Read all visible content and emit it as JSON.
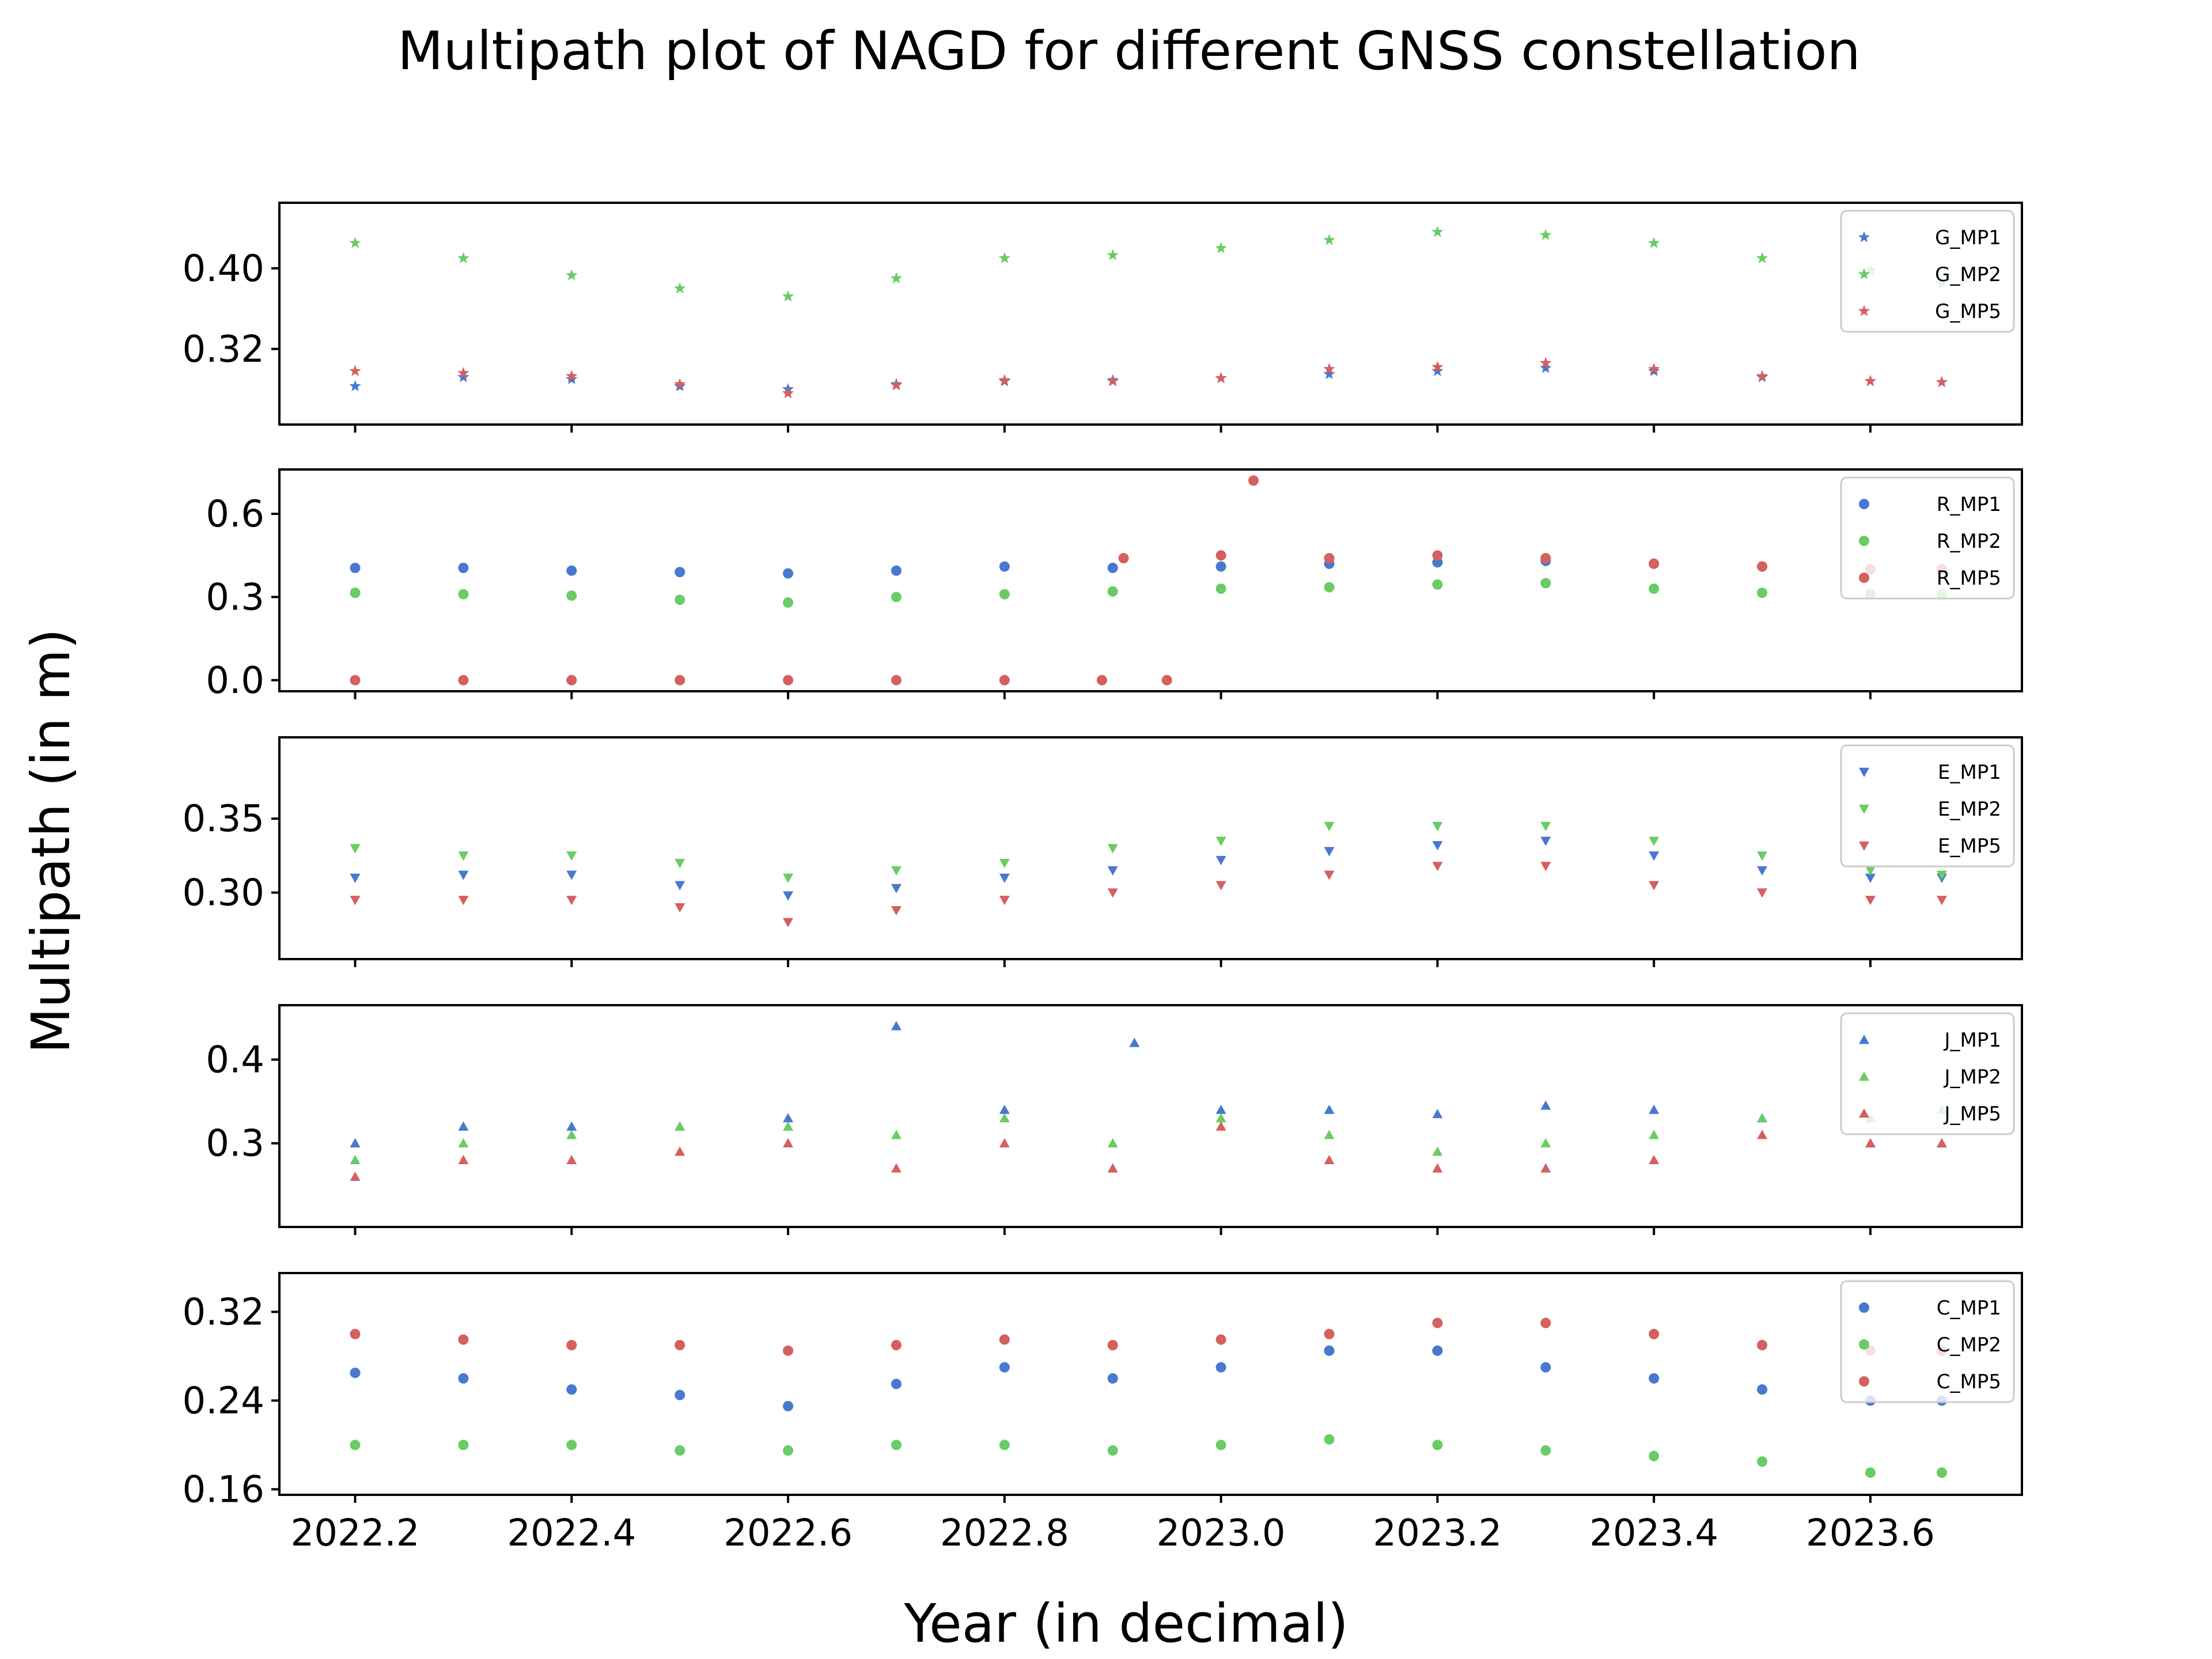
{
  "colors": {
    "MP1": "#4878d0",
    "MP2": "#6acc64",
    "MP5": "#d65f5f"
  },
  "chart_data": {
    "type": "scatter",
    "title": "Multipath plot of NAGD for different GNSS constellation",
    "xlabel": "Year (in decimal)",
    "ylabel": "Multipath (in m)",
    "xlim": [
      2022.13,
      2023.74
    ],
    "x_range": [
      2022.2,
      2023.666
    ],
    "x_ticks": [
      2022.2,
      2022.4,
      2022.6,
      2022.8,
      2023.0,
      2023.2,
      2023.4,
      2023.6
    ],
    "x_tick_labels": [
      "2022.2",
      "2022.4",
      "2022.6",
      "2022.8",
      "2023.0",
      "2023.2",
      "2023.4",
      "2023.6"
    ],
    "grid": false,
    "legend_position": "upper right",
    "panels": [
      {
        "constellation": "G",
        "marker": "star",
        "ylim": [
          0.245,
          0.465
        ],
        "y_ticks": [
          0.32,
          0.4
        ],
        "y_tick_labels": [
          "0.32",
          "0.40"
        ],
        "series": [
          {
            "name": "G_MP1",
            "color_key": "MP1",
            "x": [
              2022.2,
              2022.3,
              2022.4,
              2022.5,
              2022.6,
              2022.7,
              2022.8,
              2022.9,
              2023.0,
              2023.1,
              2023.2,
              2023.3,
              2023.4,
              2023.5,
              2023.6,
              2023.666
            ],
            "y": [
              0.283,
              0.292,
              0.29,
              0.283,
              0.28,
              0.285,
              0.288,
              0.289,
              0.291,
              0.295,
              0.298,
              0.301,
              0.298,
              0.292,
              0.288,
              0.287
            ]
          },
          {
            "name": "G_MP2",
            "color_key": "MP2",
            "x": [
              2022.2,
              2022.3,
              2022.4,
              2022.5,
              2022.6,
              2022.7,
              2022.8,
              2022.9,
              2023.0,
              2023.1,
              2023.2,
              2023.3,
              2023.4,
              2023.5,
              2023.6,
              2023.666
            ],
            "y": [
              0.425,
              0.41,
              0.393,
              0.38,
              0.372,
              0.39,
              0.41,
              0.413,
              0.42,
              0.428,
              0.436,
              0.433,
              0.425,
              0.41,
              0.398,
              0.385
            ]
          },
          {
            "name": "G_MP5",
            "color_key": "MP5",
            "x": [
              2022.2,
              2022.3,
              2022.4,
              2022.5,
              2022.6,
              2022.7,
              2022.8,
              2022.9,
              2023.0,
              2023.1,
              2023.2,
              2023.3,
              2023.4,
              2023.5,
              2023.6,
              2023.666
            ],
            "y": [
              0.298,
              0.296,
              0.293,
              0.285,
              0.276,
              0.284,
              0.289,
              0.288,
              0.291,
              0.3,
              0.302,
              0.306,
              0.3,
              0.293,
              0.288,
              0.287
            ]
          }
        ]
      },
      {
        "constellation": "R",
        "marker": "circle",
        "ylim": [
          -0.04,
          0.76
        ],
        "y_ticks": [
          0.0,
          0.3,
          0.6
        ],
        "y_tick_labels": [
          "0.0",
          "0.3",
          "0.6"
        ],
        "series": [
          {
            "name": "R_MP1",
            "color_key": "MP1",
            "x": [
              2022.2,
              2022.3,
              2022.4,
              2022.5,
              2022.6,
              2022.7,
              2022.8,
              2022.9,
              2023.0,
              2023.1,
              2023.2,
              2023.3,
              2023.4,
              2023.5,
              2023.6,
              2023.666
            ],
            "y": [
              0.405,
              0.405,
              0.395,
              0.39,
              0.385,
              0.395,
              0.41,
              0.405,
              0.41,
              0.42,
              0.425,
              0.43,
              0.42,
              0.41,
              0.4,
              0.4
            ]
          },
          {
            "name": "R_MP2",
            "color_key": "MP2",
            "x": [
              2022.2,
              2022.3,
              2022.4,
              2022.5,
              2022.6,
              2022.7,
              2022.8,
              2022.9,
              2023.0,
              2023.1,
              2023.2,
              2023.3,
              2023.4,
              2023.5,
              2023.6,
              2023.666
            ],
            "y": [
              0.315,
              0.31,
              0.305,
              0.29,
              0.28,
              0.3,
              0.31,
              0.32,
              0.33,
              0.335,
              0.345,
              0.35,
              0.33,
              0.315,
              0.31,
              0.31
            ]
          },
          {
            "name": "R_MP5",
            "color_key": "MP5",
            "x": [
              2022.2,
              2022.3,
              2022.4,
              2022.5,
              2022.6,
              2022.7,
              2022.8,
              2022.89,
              2022.91,
              2022.95,
              2023.0,
              2023.03,
              2023.1,
              2023.2,
              2023.3,
              2023.4,
              2023.5,
              2023.6,
              2023.666
            ],
            "y": [
              0.0,
              0.0,
              0.0,
              0.0,
              0.0,
              0.0,
              0.0,
              0.0,
              0.44,
              0.0,
              0.45,
              0.72,
              0.44,
              0.45,
              0.44,
              0.42,
              0.41,
              0.4,
              0.4
            ]
          }
        ]
      },
      {
        "constellation": "E",
        "marker": "triangle-down",
        "ylim": [
          0.255,
          0.405
        ],
        "y_ticks": [
          0.3,
          0.35
        ],
        "y_tick_labels": [
          "0.30",
          "0.35"
        ],
        "series": [
          {
            "name": "E_MP1",
            "color_key": "MP1",
            "x": [
              2022.2,
              2022.3,
              2022.4,
              2022.5,
              2022.6,
              2022.7,
              2022.8,
              2022.9,
              2023.0,
              2023.1,
              2023.2,
              2023.3,
              2023.4,
              2023.5,
              2023.6,
              2023.666
            ],
            "y": [
              0.31,
              0.312,
              0.312,
              0.305,
              0.298,
              0.303,
              0.31,
              0.315,
              0.322,
              0.328,
              0.332,
              0.335,
              0.325,
              0.315,
              0.31,
              0.31
            ]
          },
          {
            "name": "E_MP2",
            "color_key": "MP2",
            "x": [
              2022.2,
              2022.3,
              2022.4,
              2022.5,
              2022.6,
              2022.7,
              2022.8,
              2022.9,
              2023.0,
              2023.1,
              2023.2,
              2023.3,
              2023.4,
              2023.5,
              2023.6,
              2023.666
            ],
            "y": [
              0.33,
              0.325,
              0.325,
              0.32,
              0.31,
              0.315,
              0.32,
              0.33,
              0.335,
              0.345,
              0.345,
              0.345,
              0.335,
              0.325,
              0.315,
              0.312
            ]
          },
          {
            "name": "E_MP5",
            "color_key": "MP5",
            "x": [
              2022.2,
              2022.3,
              2022.4,
              2022.5,
              2022.6,
              2022.7,
              2022.8,
              2022.9,
              2023.0,
              2023.1,
              2023.2,
              2023.3,
              2023.4,
              2023.5,
              2023.6,
              2023.666
            ],
            "y": [
              0.295,
              0.295,
              0.295,
              0.29,
              0.28,
              0.288,
              0.295,
              0.3,
              0.305,
              0.312,
              0.318,
              0.318,
              0.305,
              0.3,
              0.295,
              0.295
            ]
          }
        ]
      },
      {
        "constellation": "J",
        "marker": "triangle-up",
        "ylim": [
          0.2,
          0.465
        ],
        "y_ticks": [
          0.3,
          0.4
        ],
        "y_tick_labels": [
          "0.3",
          "0.4"
        ],
        "series": [
          {
            "name": "J_MP1",
            "color_key": "MP1",
            "x": [
              2022.2,
              2022.3,
              2022.4,
              2022.5,
              2022.6,
              2022.7,
              2022.8,
              2022.92,
              2023.0,
              2023.1,
              2023.2,
              2023.3,
              2023.4,
              2023.5,
              2023.6,
              2023.666
            ],
            "y": [
              0.3,
              0.32,
              0.32,
              0.32,
              0.33,
              0.44,
              0.34,
              0.42,
              0.34,
              0.34,
              0.335,
              0.345,
              0.34,
              0.33,
              0.3,
              0.3
            ]
          },
          {
            "name": "J_MP2",
            "color_key": "MP2",
            "x": [
              2022.2,
              2022.3,
              2022.4,
              2022.5,
              2022.6,
              2022.7,
              2022.8,
              2022.9,
              2023.0,
              2023.1,
              2023.2,
              2023.3,
              2023.4,
              2023.5,
              2023.6,
              2023.666
            ],
            "y": [
              0.28,
              0.3,
              0.31,
              0.32,
              0.32,
              0.31,
              0.33,
              0.3,
              0.33,
              0.31,
              0.29,
              0.3,
              0.31,
              0.33,
              0.33,
              0.34
            ]
          },
          {
            "name": "J_MP5",
            "color_key": "MP5",
            "x": [
              2022.2,
              2022.3,
              2022.4,
              2022.5,
              2022.6,
              2022.7,
              2022.8,
              2022.9,
              2023.0,
              2023.1,
              2023.2,
              2023.3,
              2023.4,
              2023.5,
              2023.6,
              2023.666
            ],
            "y": [
              0.26,
              0.28,
              0.28,
              0.29,
              0.3,
              0.27,
              0.3,
              0.27,
              0.32,
              0.28,
              0.27,
              0.27,
              0.28,
              0.31,
              0.3,
              0.3
            ]
          }
        ]
      },
      {
        "constellation": "C",
        "marker": "circle",
        "ylim": [
          0.155,
          0.355
        ],
        "y_ticks": [
          0.16,
          0.24,
          0.32
        ],
        "y_tick_labels": [
          "0.16",
          "0.24",
          "0.32"
        ],
        "series": [
          {
            "name": "C_MP1",
            "color_key": "MP1",
            "x": [
              2022.2,
              2022.3,
              2022.4,
              2022.5,
              2022.6,
              2022.7,
              2022.8,
              2022.9,
              2023.0,
              2023.1,
              2023.2,
              2023.3,
              2023.4,
              2023.5,
              2023.6,
              2023.666
            ],
            "y": [
              0.265,
              0.26,
              0.25,
              0.245,
              0.235,
              0.255,
              0.27,
              0.26,
              0.27,
              0.285,
              0.285,
              0.27,
              0.26,
              0.25,
              0.24,
              0.24
            ]
          },
          {
            "name": "C_MP2",
            "color_key": "MP2",
            "x": [
              2022.2,
              2022.3,
              2022.4,
              2022.5,
              2022.6,
              2022.7,
              2022.8,
              2022.9,
              2023.0,
              2023.1,
              2023.2,
              2023.3,
              2023.4,
              2023.5,
              2023.6,
              2023.666
            ],
            "y": [
              0.2,
              0.2,
              0.2,
              0.195,
              0.195,
              0.2,
              0.2,
              0.195,
              0.2,
              0.205,
              0.2,
              0.195,
              0.19,
              0.185,
              0.175,
              0.175
            ]
          },
          {
            "name": "C_MP5",
            "color_key": "MP5",
            "x": [
              2022.2,
              2022.3,
              2022.4,
              2022.5,
              2022.6,
              2022.7,
              2022.8,
              2022.9,
              2023.0,
              2023.1,
              2023.2,
              2023.3,
              2023.4,
              2023.5,
              2023.6,
              2023.666
            ],
            "y": [
              0.3,
              0.295,
              0.29,
              0.29,
              0.285,
              0.29,
              0.295,
              0.29,
              0.295,
              0.3,
              0.31,
              0.31,
              0.3,
              0.29,
              0.285,
              0.285
            ]
          }
        ]
      }
    ]
  }
}
